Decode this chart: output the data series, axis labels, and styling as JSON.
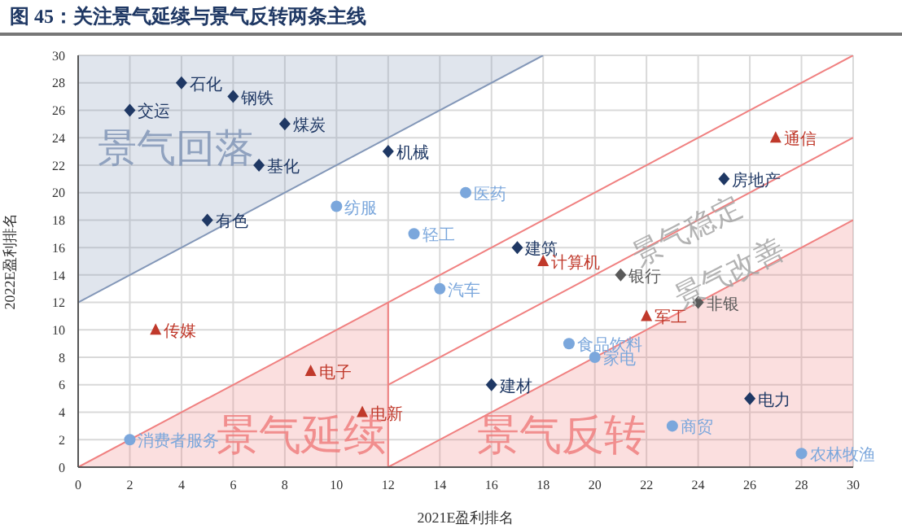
{
  "chart_data": {
    "type": "scatter",
    "title": "图 45：关注景气延续与景气反转两条主线",
    "xlabel": "2021E盈利排名",
    "ylabel": "2022E盈利排名",
    "xlim": [
      0,
      30
    ],
    "ylim": [
      0,
      30
    ],
    "xticks": [
      0,
      2,
      4,
      6,
      8,
      10,
      12,
      14,
      16,
      18,
      20,
      22,
      24,
      26,
      28,
      30
    ],
    "yticks": [
      0,
      2,
      4,
      6,
      8,
      10,
      12,
      14,
      16,
      18,
      20,
      22,
      24,
      26,
      28,
      30
    ],
    "grid": true,
    "legend": false,
    "series": [
      {
        "type": "line",
        "color": "#8397b8",
        "x": [
          0,
          18
        ],
        "values": [
          12,
          30
        ],
        "lower": [
          12,
          30
        ],
        "upper": [
          30,
          30
        ]
      },
      {
        "type": "line",
        "color": "#f08080",
        "x": [
          0,
          12,
          30
        ],
        "values": [
          0,
          12,
          30
        ],
        "lower": [
          0,
          0,
          null
        ],
        "upper": [
          0,
          12,
          null
        ]
      },
      {
        "type": "line",
        "color": "#f08080",
        "x": [
          12,
          30
        ],
        "values": [
          6,
          24
        ]
      },
      {
        "type": "line",
        "color": "#f08080",
        "x": [
          12,
          12,
          30
        ],
        "values": [
          12,
          0,
          18
        ],
        "lower": [
          null,
          0,
          0
        ],
        "upper": [
          null,
          0,
          18
        ]
      },
      {
        "type": "scatter",
        "marker": "diamond",
        "color": "#1f3864",
        "x": [
          2,
          4,
          6,
          8,
          7,
          5,
          12,
          17,
          25,
          16,
          26
        ],
        "values": [
          26,
          28,
          27,
          25,
          22,
          18,
          23,
          16,
          21,
          6,
          5
        ]
      },
      {
        "type": "scatter",
        "marker": "circle",
        "color": "#7ba7dc",
        "x": [
          10,
          13,
          15,
          14,
          19,
          20,
          23,
          28,
          2
        ],
        "values": [
          19,
          17,
          20,
          13,
          9,
          8,
          3,
          1,
          2
        ]
      },
      {
        "type": "scatter",
        "marker": "triangle",
        "color": "#c0392b",
        "x": [
          27,
          18,
          3,
          9,
          11,
          22
        ],
        "values": [
          24,
          15,
          10,
          7,
          4,
          11
        ]
      },
      {
        "type": "scatter",
        "marker": "diamond",
        "color": "#595959",
        "x": [
          21,
          24
        ],
        "values": [
          14,
          12
        ]
      }
    ],
    "annotations": [
      {
        "text": "交运",
        "x": 2,
        "y": 26
      },
      {
        "text": "石化",
        "x": 4,
        "y": 28
      },
      {
        "text": "钢铁",
        "x": 6,
        "y": 27
      },
      {
        "text": "煤炭",
        "x": 8,
        "y": 25
      },
      {
        "text": "基化",
        "x": 7,
        "y": 22
      },
      {
        "text": "有色",
        "x": 5,
        "y": 18
      },
      {
        "text": "机械",
        "x": 12,
        "y": 23
      },
      {
        "text": "建筑",
        "x": 17,
        "y": 16
      },
      {
        "text": "房地产",
        "x": 25,
        "y": 21
      },
      {
        "text": "建材",
        "x": 16,
        "y": 6
      },
      {
        "text": "电力",
        "x": 26,
        "y": 5
      },
      {
        "text": "纺服",
        "x": 10,
        "y": 19
      },
      {
        "text": "轻工",
        "x": 13,
        "y": 17
      },
      {
        "text": "医药",
        "x": 15,
        "y": 20
      },
      {
        "text": "汽车",
        "x": 14,
        "y": 13
      },
      {
        "text": "食品饮料",
        "x": 19,
        "y": 9
      },
      {
        "text": "家电",
        "x": 20,
        "y": 8
      },
      {
        "text": "商贸",
        "x": 23,
        "y": 3
      },
      {
        "text": "农林牧渔",
        "x": 28,
        "y": 1
      },
      {
        "text": "消费者服务",
        "x": 2,
        "y": 2
      },
      {
        "text": "通信",
        "x": 27,
        "y": 24
      },
      {
        "text": "计算机",
        "x": 18,
        "y": 15
      },
      {
        "text": "传媒",
        "x": 3,
        "y": 10
      },
      {
        "text": "电子",
        "x": 9,
        "y": 7
      },
      {
        "text": "电新",
        "x": 11,
        "y": 4
      },
      {
        "text": "军工",
        "x": 22,
        "y": 11
      },
      {
        "text": "银行",
        "x": 21,
        "y": 14
      },
      {
        "text": "非银",
        "x": 24,
        "y": 12
      },
      "景气回落",
      "景气延续",
      "景气反转",
      "景气稳定",
      "景气改善"
    ]
  }
}
